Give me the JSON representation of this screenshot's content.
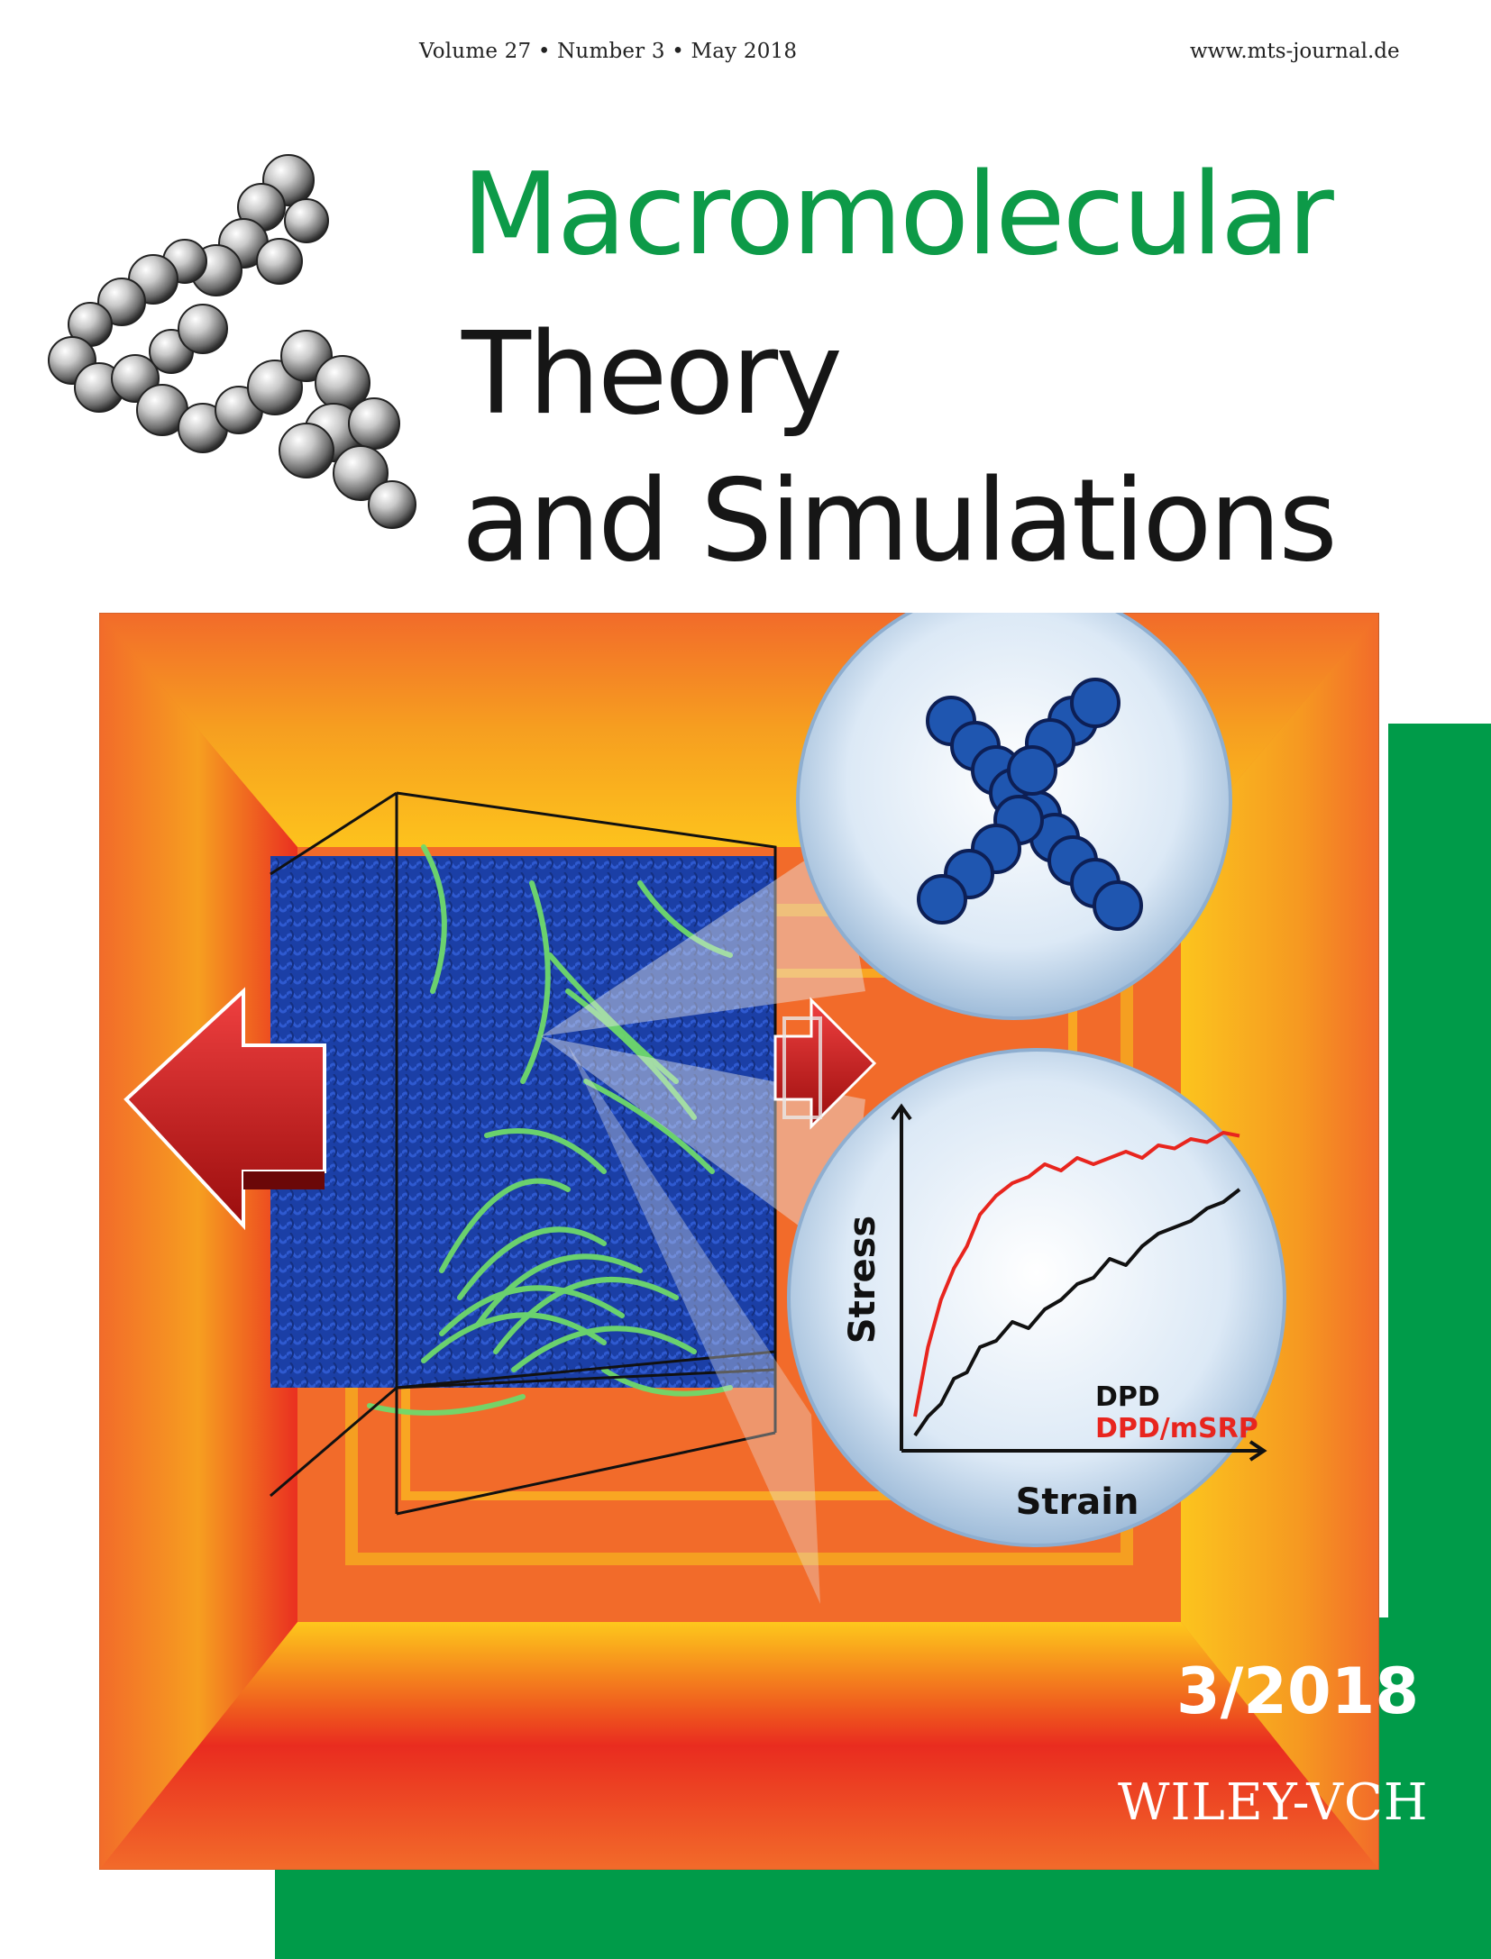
{
  "header": {
    "issue_line": "Volume 27 • Number 3 • May 2018",
    "website": "www.mts-journal.de"
  },
  "journal_title": {
    "line1": "Macromolecular",
    "line2": "Theory",
    "line3": "and Simulations"
  },
  "cover_chart": {
    "ylabel": "Stress",
    "xlabel": "Strain",
    "legend_dpd": "DPD",
    "legend_mrsp": "DPD/mSRP"
  },
  "chart_data": {
    "type": "line",
    "title": "",
    "xlabel": "Strain",
    "ylabel": "Stress",
    "legend_position": "bottom-right",
    "grid": false,
    "x": [
      0.0,
      0.04,
      0.08,
      0.12,
      0.16,
      0.2,
      0.25,
      0.3,
      0.35,
      0.4,
      0.45,
      0.5,
      0.55,
      0.6,
      0.65,
      0.7,
      0.75,
      0.8,
      0.85,
      0.9,
      0.95,
      1.0
    ],
    "series": [
      {
        "name": "DPD",
        "color": "#111111",
        "values": [
          0.02,
          0.08,
          0.12,
          0.2,
          0.22,
          0.3,
          0.32,
          0.38,
          0.36,
          0.42,
          0.45,
          0.5,
          0.52,
          0.58,
          0.56,
          0.62,
          0.66,
          0.68,
          0.7,
          0.74,
          0.76,
          0.8
        ]
      },
      {
        "name": "DPD/mSRP",
        "color": "#e8251e",
        "values": [
          0.08,
          0.3,
          0.45,
          0.55,
          0.62,
          0.72,
          0.78,
          0.82,
          0.84,
          0.88,
          0.86,
          0.9,
          0.88,
          0.9,
          0.92,
          0.9,
          0.94,
          0.93,
          0.96,
          0.95,
          0.98,
          0.97
        ]
      }
    ]
  },
  "footer": {
    "issue_number": "3/2018",
    "publisher": "WILEY-VCH"
  },
  "colors": {
    "brand_green": "#009b49",
    "title_green": "#0d9a48",
    "art_orange": "#f26b2a",
    "art_red": "#e8251e",
    "polymer_blue": "#1b3fa6",
    "fiber_green": "#6fd96b"
  },
  "icons": {
    "molecule": "molecule-model-icon",
    "arrow_left": "arrow-left-icon",
    "arrow_right": "arrow-right-icon"
  }
}
